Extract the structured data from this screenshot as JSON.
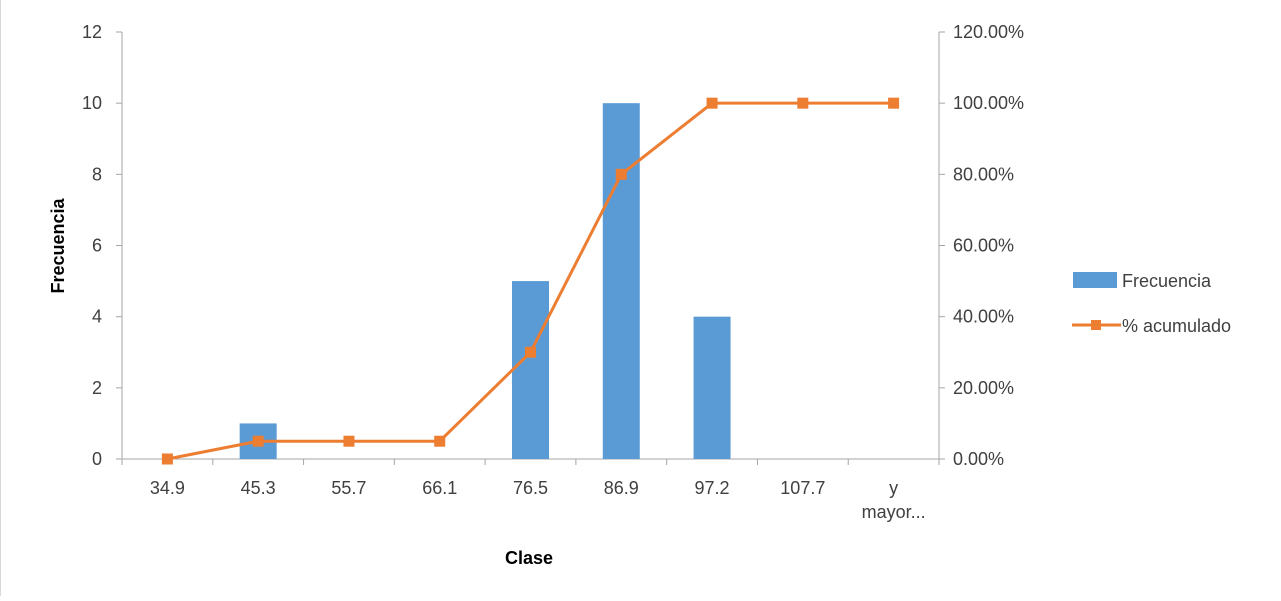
{
  "colors": {
    "bar": "#5b9bd5",
    "line": "#ed7d31",
    "axis": "#a6a6a6",
    "text": "#404040"
  },
  "chart_data": {
    "type": "bar",
    "categories": [
      "34.9",
      "45.3",
      "55.7",
      "66.1",
      "76.5",
      "86.9",
      "97.2",
      "107.7",
      "y mayor..."
    ],
    "category_lines": [
      [
        "34.9"
      ],
      [
        "45.3"
      ],
      [
        "55.7"
      ],
      [
        "66.1"
      ],
      [
        "76.5"
      ],
      [
        "86.9"
      ],
      [
        "97.2"
      ],
      [
        "107.7"
      ],
      [
        "y",
        "mayor..."
      ]
    ],
    "series": [
      {
        "name": "Frecuencia",
        "type": "bar",
        "axis": "left",
        "values": [
          0,
          1,
          0,
          0,
          5,
          10,
          4,
          0,
          0
        ]
      },
      {
        "name": "% acumulado",
        "type": "line",
        "axis": "right",
        "marker": "square",
        "values": [
          0.0,
          5.0,
          5.0,
          5.0,
          30.0,
          80.0,
          100.0,
          100.0,
          100.0
        ]
      }
    ],
    "xlabel": "Clase",
    "ylabel": "Frecuencia",
    "ylim": [
      0,
      12
    ],
    "yticks": [
      "0",
      "2",
      "4",
      "6",
      "8",
      "10",
      "12"
    ],
    "y2lim": [
      0,
      120
    ],
    "y2ticks": [
      "0.00%",
      "20.00%",
      "40.00%",
      "60.00%",
      "80.00%",
      "100.00%",
      "120.00%"
    ],
    "grid": false,
    "legend_position": "right"
  }
}
